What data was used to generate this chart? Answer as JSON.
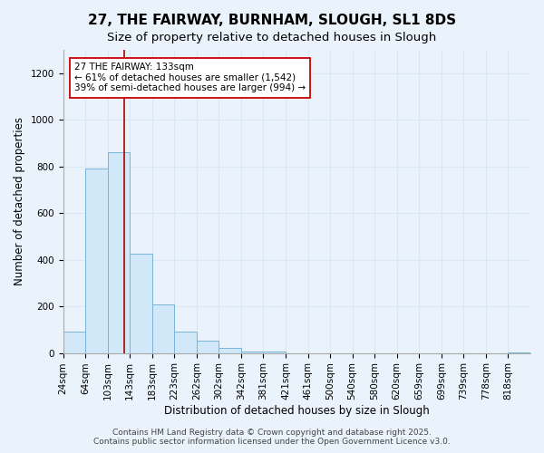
{
  "title": "27, THE FAIRWAY, BURNHAM, SLOUGH, SL1 8DS",
  "subtitle": "Size of property relative to detached houses in Slough",
  "xlabel": "Distribution of detached houses by size in Slough",
  "ylabel": "Number of detached properties",
  "bin_labels": [
    "24sqm",
    "64sqm",
    "103sqm",
    "143sqm",
    "183sqm",
    "223sqm",
    "262sqm",
    "302sqm",
    "342sqm",
    "381sqm",
    "421sqm",
    "461sqm",
    "500sqm",
    "540sqm",
    "580sqm",
    "620sqm",
    "659sqm",
    "699sqm",
    "739sqm",
    "778sqm",
    "818sqm"
  ],
  "bar_values": [
    90,
    790,
    860,
    425,
    210,
    90,
    52,
    22,
    5,
    5,
    0,
    0,
    0,
    0,
    0,
    0,
    0,
    0,
    0,
    0,
    2
  ],
  "bar_color": "#d0e8f8",
  "bar_edgecolor": "#7ab4d8",
  "background_color": "#eaf2fb",
  "grid_color": "#d8e8f5",
  "vline_x": 2.75,
  "vline_color": "#aa0000",
  "annotation_title": "27 THE FAIRWAY: 133sqm",
  "annotation_line1": "← 61% of detached houses are smaller (1,542)",
  "annotation_line2": "39% of semi-detached houses are larger (994) →",
  "annotation_box_facecolor": "#ffffff",
  "annotation_box_edgecolor": "#cc0000",
  "ylim": [
    0,
    1300
  ],
  "yticks": [
    0,
    200,
    400,
    600,
    800,
    1000,
    1200
  ],
  "footer1": "Contains HM Land Registry data © Crown copyright and database right 2025.",
  "footer2": "Contains public sector information licensed under the Open Government Licence v3.0.",
  "title_fontsize": 11,
  "subtitle_fontsize": 9.5,
  "axis_label_fontsize": 8.5,
  "tick_fontsize": 7.5,
  "annotation_fontsize": 7.5,
  "footer_fontsize": 6.5
}
